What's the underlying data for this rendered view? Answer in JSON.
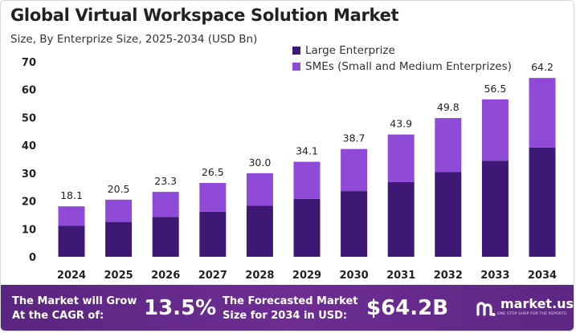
{
  "header": {
    "title": "Global Virtual Workspace Solution Market",
    "subtitle": "Size, By Enterprize Size, 2025-2034 (USD Bn)"
  },
  "colors": {
    "large": "#3d1875",
    "smes": "#8f4ad8",
    "footer": "#6b2f8f"
  },
  "chart_data": {
    "type": "bar",
    "stacked": true,
    "categories": [
      "2024",
      "2025",
      "2026",
      "2027",
      "2028",
      "2029",
      "2030",
      "2031",
      "2032",
      "2033",
      "2034"
    ],
    "series": [
      {
        "name": "Large Enterprize",
        "values": [
          11.1,
          12.5,
          14.3,
          16.2,
          18.3,
          20.8,
          23.6,
          26.8,
          30.4,
          34.5,
          39.2
        ]
      },
      {
        "name": "SMEs (Small and Medium Enterprizes)",
        "values": [
          7.0,
          8.0,
          9.0,
          10.3,
          11.7,
          13.3,
          15.1,
          17.1,
          19.4,
          22.0,
          25.0
        ]
      }
    ],
    "totals": [
      "18.1",
      "20.5",
      "23.3",
      "26.5",
      "30.0",
      "34.1",
      "38.7",
      "43.9",
      "49.8",
      "56.5",
      "64.2"
    ],
    "ylim": [
      0,
      70
    ],
    "yticks": [
      "0",
      "10",
      "20",
      "30",
      "40",
      "50",
      "60",
      "70"
    ],
    "grid": false,
    "legend_position": "top-center"
  },
  "footer": {
    "cagr_label_line1": "The Market will Grow",
    "cagr_label_line2": "At the CAGR of:",
    "cagr_value": "13.5%",
    "forecast_label_line1": "The Forecasted Market",
    "forecast_label_line2": "Size for 2034 in USD:",
    "forecast_value": "$64.2B",
    "logo_text": "market.us",
    "logo_tagline": "ONE STOP SHOP FOR THE REPORTS"
  }
}
